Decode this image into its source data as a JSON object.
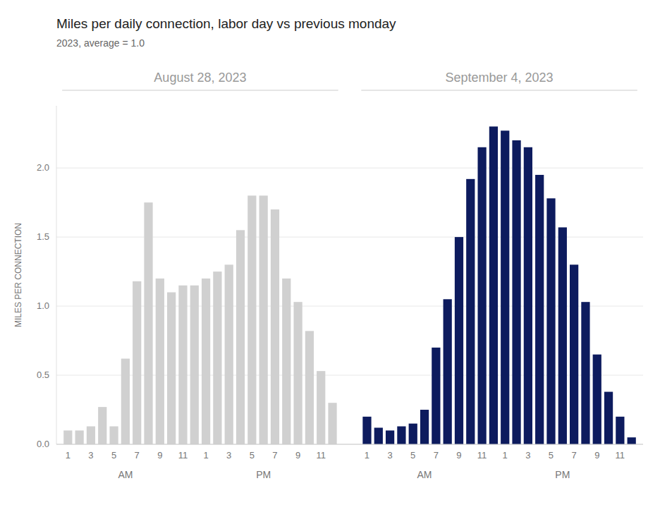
{
  "chart_data": {
    "type": "bar",
    "title": "Miles per daily connection, labor day vs previous monday",
    "subtitle": "2023, average = 1.0",
    "y_label": "MILES PER CONNECTION",
    "categories": [
      "1",
      null,
      "3",
      null,
      "5",
      null,
      "7",
      null,
      "9",
      null,
      "11",
      null,
      "1",
      null,
      "3",
      null,
      "5",
      null,
      "7",
      null,
      "9",
      null,
      "11",
      null
    ],
    "series": [
      {
        "name": "August 28, 2023",
        "color": "#d0d0d0",
        "values": [
          0.1,
          0.1,
          0.13,
          0.27,
          0.13,
          0.62,
          1.18,
          1.75,
          1.2,
          1.1,
          1.15,
          1.15,
          1.2,
          1.25,
          1.3,
          1.55,
          1.8,
          1.8,
          1.7,
          1.2,
          1.03,
          0.82,
          0.53,
          0.3
        ]
      },
      {
        "name": "September 4, 2023",
        "color": "#0d1b5e",
        "values": [
          0.2,
          0.12,
          0.1,
          0.13,
          0.15,
          0.25,
          0.7,
          1.05,
          1.5,
          1.92,
          2.15,
          2.3,
          2.27,
          2.2,
          2.15,
          1.95,
          1.78,
          1.57,
          1.3,
          1.03,
          0.65,
          0.38,
          0.2,
          0.05
        ]
      }
    ],
    "annotations": [
      "AM",
      "PM",
      "AM",
      "PM"
    ],
    "ylim": [
      0,
      2.45
    ],
    "yticks": [
      {
        "value": 0.0,
        "label": "0.0"
      },
      0.5,
      {
        "value": 1.0,
        "label": "1.0"
      },
      1.5,
      {
        "value": 2.0,
        "label": "2.0"
      }
    ],
    "grid": true
  }
}
